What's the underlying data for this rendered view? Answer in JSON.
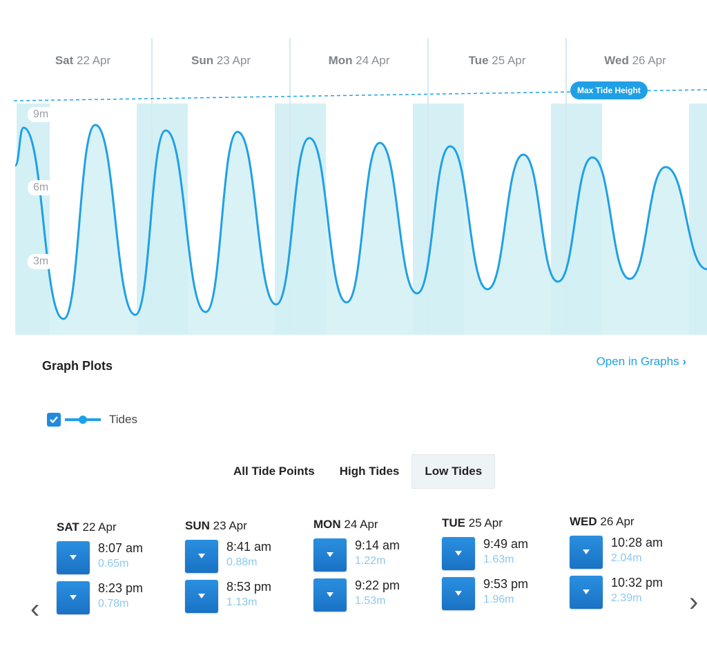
{
  "chart": {
    "days": [
      {
        "weekday": "Sat",
        "date": "22 Apr"
      },
      {
        "weekday": "Sun",
        "date": "23 Apr"
      },
      {
        "weekday": "Mon",
        "date": "24 Apr"
      },
      {
        "weekday": "Tue",
        "date": "25 Apr"
      },
      {
        "weekday": "Wed",
        "date": "26 Apr"
      }
    ],
    "y_ticks": [
      "9m",
      "6m",
      "3m"
    ],
    "max_label": "Max Tide Height",
    "accent": "#1fa0e6",
    "fill": "#c9ecf3"
  },
  "graph_plots": {
    "title": "Graph Plots",
    "open_link": "Open in Graphs",
    "legend_label": "Tides",
    "checked": true
  },
  "tabs": [
    "All Tide Points",
    "High Tides",
    "Low Tides"
  ],
  "active_tab": "Low Tides",
  "low_tides": [
    {
      "weekday": "SAT",
      "date": "22 Apr",
      "tides": [
        {
          "time": "8:07 am",
          "height": "0.65m"
        },
        {
          "time": "8:23 pm",
          "height": "0.78m"
        }
      ]
    },
    {
      "weekday": "SUN",
      "date": "23 Apr",
      "tides": [
        {
          "time": "8:41 am",
          "height": "0.88m"
        },
        {
          "time": "8:53 pm",
          "height": "1.13m"
        }
      ]
    },
    {
      "weekday": "MON",
      "date": "24 Apr",
      "tides": [
        {
          "time": "9:14 am",
          "height": "1.22m"
        },
        {
          "time": "9:22 pm",
          "height": "1.53m"
        }
      ]
    },
    {
      "weekday": "TUE",
      "date": "25 Apr",
      "tides": [
        {
          "time": "9:49 am",
          "height": "1.63m"
        },
        {
          "time": "9:53 pm",
          "height": "1.96m"
        }
      ]
    },
    {
      "weekday": "WED",
      "date": "26 Apr",
      "tides": [
        {
          "time": "10:28 am",
          "height": "2.04m"
        },
        {
          "time": "10:32 pm",
          "height": "2.39m"
        }
      ]
    }
  ],
  "icons": {
    "prev": "chevron-left-icon",
    "next": "chevron-right-icon",
    "tide": "chevron-down-icon"
  }
}
